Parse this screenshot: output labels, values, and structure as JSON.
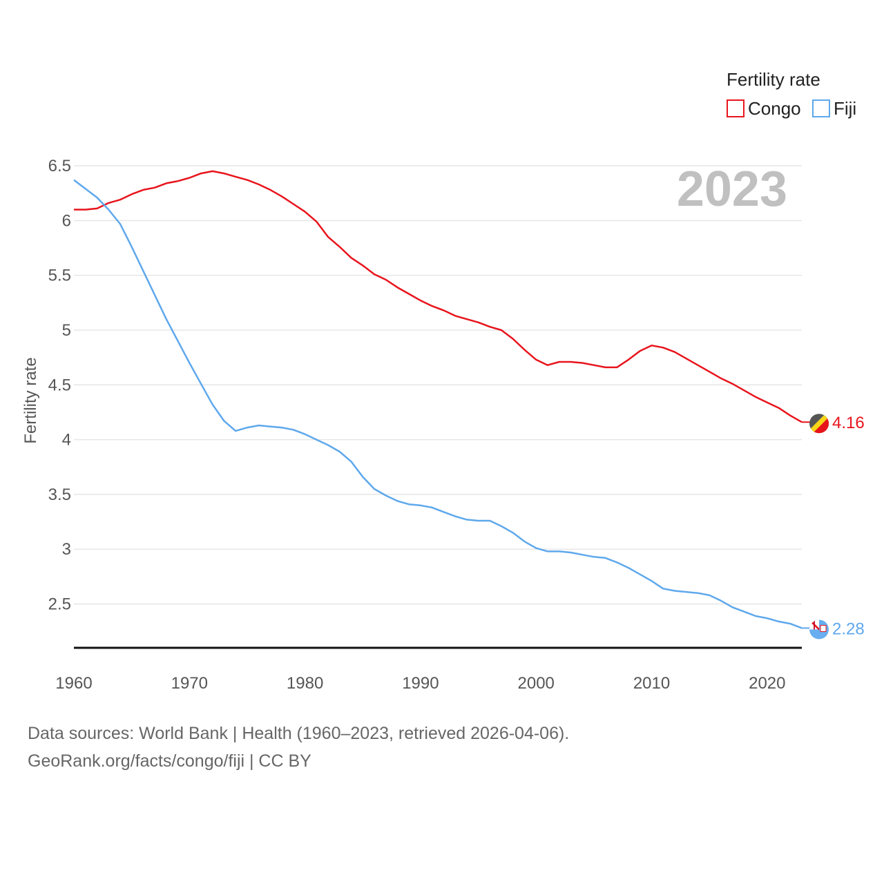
{
  "chart_data": {
    "type": "line",
    "title": "Fertility rate",
    "xlabel": "",
    "ylabel": "Fertility rate",
    "year_label": "2023",
    "xlim": [
      1960,
      2023
    ],
    "ylim": [
      2.1,
      6.5
    ],
    "yticks": [
      2.5,
      3,
      3.5,
      4,
      4.5,
      5,
      5.5,
      6,
      6.5
    ],
    "ytick_labels": [
      "2.5",
      "3",
      "3.5",
      "4",
      "4.5",
      "5",
      "5.5",
      "6",
      "6.5"
    ],
    "xticks": [
      1960,
      1970,
      1980,
      1990,
      2000,
      2010,
      2020
    ],
    "xtick_labels": [
      "1960",
      "1970",
      "1980",
      "1990",
      "2000",
      "2010",
      "2020"
    ],
    "legend": {
      "title": "Fertility rate",
      "placement": "top-right"
    },
    "x": [
      1960,
      1961,
      1962,
      1963,
      1964,
      1965,
      1966,
      1967,
      1968,
      1969,
      1970,
      1971,
      1972,
      1973,
      1974,
      1975,
      1976,
      1977,
      1978,
      1979,
      1980,
      1981,
      1982,
      1983,
      1984,
      1985,
      1986,
      1987,
      1988,
      1989,
      1990,
      1991,
      1992,
      1993,
      1994,
      1995,
      1996,
      1997,
      1998,
      1999,
      2000,
      2001,
      2002,
      2003,
      2004,
      2005,
      2006,
      2007,
      2008,
      2009,
      2010,
      2011,
      2012,
      2013,
      2014,
      2015,
      2016,
      2017,
      2018,
      2019,
      2020,
      2021,
      2022,
      2023
    ],
    "series": [
      {
        "name": "Congo",
        "color": "#e8141c",
        "end_label": "4.16",
        "flag_icon": "congo-flag-icon",
        "values": [
          6.1,
          6.1,
          6.11,
          6.16,
          6.19,
          6.24,
          6.28,
          6.3,
          6.34,
          6.36,
          6.39,
          6.43,
          6.45,
          6.43,
          6.4,
          6.37,
          6.33,
          6.28,
          6.22,
          6.15,
          6.08,
          5.99,
          5.85,
          5.76,
          5.66,
          5.59,
          5.51,
          5.46,
          5.39,
          5.33,
          5.27,
          5.22,
          5.18,
          5.13,
          5.1,
          5.07,
          5.03,
          5.0,
          4.92,
          4.82,
          4.73,
          4.68,
          4.71,
          4.71,
          4.7,
          4.68,
          4.66,
          4.66,
          4.73,
          4.81,
          4.86,
          4.84,
          4.8,
          4.74,
          4.68,
          4.62,
          4.56,
          4.51,
          4.45,
          4.39,
          4.34,
          4.29,
          4.22,
          4.16
        ]
      },
      {
        "name": "Fiji",
        "color": "#5ea8ec",
        "end_label": "2.28",
        "flag_icon": "fiji-flag-icon",
        "values": [
          6.37,
          6.29,
          6.21,
          6.1,
          5.97,
          5.76,
          5.54,
          5.32,
          5.1,
          4.9,
          4.7,
          4.51,
          4.32,
          4.17,
          4.08,
          4.11,
          4.13,
          4.12,
          4.11,
          4.09,
          4.05,
          4.0,
          3.95,
          3.89,
          3.8,
          3.66,
          3.55,
          3.49,
          3.44,
          3.41,
          3.4,
          3.38,
          3.34,
          3.3,
          3.27,
          3.26,
          3.26,
          3.21,
          3.15,
          3.07,
          3.01,
          2.98,
          2.98,
          2.97,
          2.95,
          2.93,
          2.92,
          2.88,
          2.83,
          2.77,
          2.71,
          2.64,
          2.62,
          2.61,
          2.6,
          2.58,
          2.53,
          2.47,
          2.43,
          2.39,
          2.37,
          2.34,
          2.32,
          2.28
        ]
      }
    ]
  },
  "source": {
    "line1": "Data sources: World Bank | Health (1960–2023, retrieved 2026-04-06).",
    "line2": "GeoRank.org/facts/congo/fiji | CC BY"
  }
}
